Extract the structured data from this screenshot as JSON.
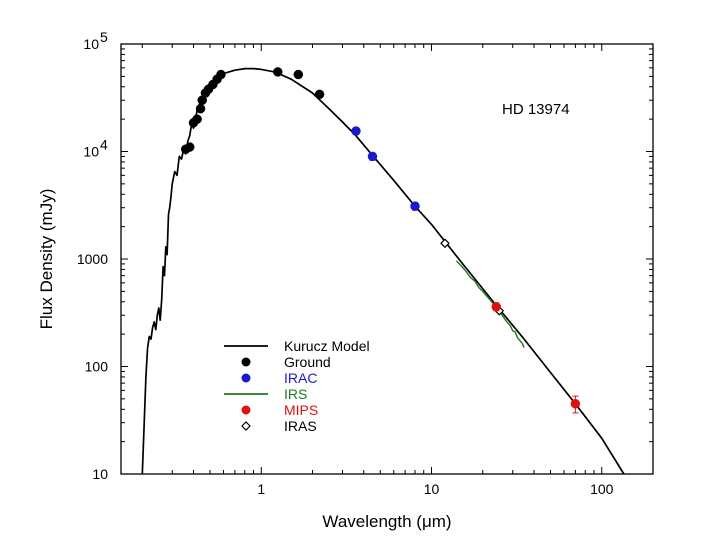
{
  "chart_data": {
    "type": "scatter",
    "title": "",
    "annotation": "HD 13974",
    "xlabel": "Wavelength (μm)",
    "ylabel": "Flux Density (mJy)",
    "xscale": "log",
    "yscale": "log",
    "xlim": [
      0.15,
      200
    ],
    "ylim": [
      10,
      100000
    ],
    "grid": false,
    "legend_position": "lower-left",
    "x_ticks": [
      {
        "value": 1,
        "label": "1"
      },
      {
        "value": 10,
        "label": "10"
      },
      {
        "value": 100,
        "label": "100"
      }
    ],
    "y_ticks": [
      {
        "value": 10,
        "label": "10"
      },
      {
        "value": 100,
        "label": "100"
      },
      {
        "value": 1000,
        "label": "1000"
      },
      {
        "value": 10000,
        "label": "10",
        "exponent": "4"
      },
      {
        "value": 100000,
        "label": "10",
        "exponent": "5"
      }
    ],
    "colors": {
      "model": "#000000",
      "ground": "#000000",
      "irac": "#1a1acc",
      "irs": "#1f7a1f",
      "mips": "#dd1111",
      "iras": "#000000"
    },
    "legend": [
      {
        "label": "Kurucz Model",
        "marker": "line",
        "color": "#000000"
      },
      {
        "label": "Ground",
        "marker": "filled-circle",
        "color": "#000000"
      },
      {
        "label": "IRAC",
        "marker": "filled-circle",
        "color": "#1a1acc"
      },
      {
        "label": "IRS",
        "marker": "line",
        "color": "#1f7a1f"
      },
      {
        "label": "MIPS",
        "marker": "filled-circle",
        "color": "#dd1111"
      },
      {
        "label": "IRAS",
        "marker": "open-diamond",
        "color": "#000000"
      }
    ],
    "series": [
      {
        "name": "Kurucz Model",
        "kind": "line",
        "color": "#000000",
        "x": [
          0.2,
          0.205,
          0.21,
          0.215,
          0.22,
          0.225,
          0.23,
          0.235,
          0.24,
          0.245,
          0.25,
          0.255,
          0.26,
          0.265,
          0.27,
          0.275,
          0.28,
          0.285,
          0.29,
          0.295,
          0.3,
          0.31,
          0.32,
          0.33,
          0.34,
          0.35,
          0.36,
          0.37,
          0.38,
          0.39,
          0.4,
          0.42,
          0.45,
          0.48,
          0.5,
          0.55,
          0.6,
          0.7,
          0.8,
          0.9,
          1.0,
          1.2,
          1.5,
          2.0,
          2.5,
          3.0,
          3.6,
          4.5,
          6.0,
          8.0,
          10,
          15,
          24,
          35,
          50,
          70,
          100,
          135
        ],
        "y": [
          10,
          28,
          80,
          150,
          190,
          180,
          230,
          260,
          220,
          300,
          350,
          270,
          420,
          850,
          700,
          1300,
          1100,
          2600,
          3000,
          3800,
          5000,
          6500,
          6000,
          9000,
          8500,
          10500,
          9500,
          12500,
          14000,
          18000,
          16500,
          24000,
          32000,
          40000,
          43000,
          49000,
          53000,
          57000,
          59000,
          59000,
          58000,
          55000,
          47000,
          35000,
          25000,
          18800,
          14000,
          9200,
          5400,
          3100,
          2100,
          930,
          370,
          180,
          88,
          45,
          21.5,
          10
        ]
      },
      {
        "name": "IRS",
        "kind": "line",
        "color": "#1f7a1f",
        "x": [
          14,
          15,
          16,
          17,
          18,
          19,
          20,
          21,
          22,
          23,
          24,
          25,
          26,
          27,
          28,
          29,
          30,
          31,
          32,
          33,
          34,
          35
        ],
        "y": [
          960,
          860,
          760,
          670,
          620,
          540,
          500,
          455,
          420,
          385,
          355,
          320,
          300,
          275,
          255,
          240,
          215,
          210,
          185,
          175,
          165,
          150
        ]
      },
      {
        "name": "Ground",
        "kind": "points",
        "marker": "filled-circle",
        "color": "#000000",
        "x": [
          0.36,
          0.38,
          0.4,
          0.42,
          0.44,
          0.45,
          0.47,
          0.49,
          0.52,
          0.55,
          0.58,
          1.25,
          1.65,
          2.2
        ],
        "y": [
          10500,
          11000,
          18500,
          20000,
          25000,
          30000,
          35000,
          38000,
          42000,
          47000,
          52000,
          55000,
          52000,
          34000
        ]
      },
      {
        "name": "IRAC",
        "kind": "points",
        "marker": "filled-circle",
        "color": "#1a1acc",
        "x": [
          3.6,
          4.5,
          8.0
        ],
        "y": [
          15500,
          9000,
          3100
        ],
        "yerr": [
          1100,
          700,
          250
        ]
      },
      {
        "name": "IRAS",
        "kind": "points",
        "marker": "open-diamond",
        "color": "#000000",
        "x": [
          12,
          25
        ],
        "y": [
          1400,
          330
        ]
      },
      {
        "name": "MIPS",
        "kind": "points",
        "marker": "filled-circle",
        "color": "#dd1111",
        "x": [
          24,
          70
        ],
        "y": [
          360,
          45
        ],
        "yerr": [
          30,
          8
        ]
      }
    ]
  }
}
